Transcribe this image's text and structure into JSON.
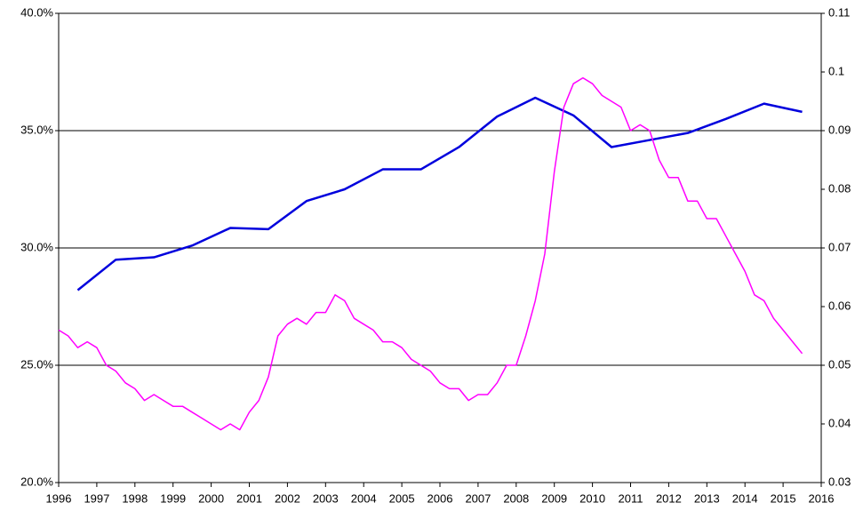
{
  "chart_data": {
    "type": "line",
    "xlim": [
      1996,
      2016
    ],
    "xticks": [
      1996,
      1997,
      1998,
      1999,
      2000,
      2001,
      2002,
      2003,
      2004,
      2005,
      2006,
      2007,
      2008,
      2009,
      2010,
      2011,
      2012,
      2013,
      2014,
      2015,
      2016
    ],
    "ylim": [
      20,
      40
    ],
    "yticks": [
      {
        "value": 20,
        "label": "20.0%"
      },
      {
        "value": 25,
        "label": "25.0%"
      },
      {
        "value": 30,
        "label": "30.0%"
      },
      {
        "value": 35,
        "label": "35.0%"
      },
      {
        "value": 40,
        "label": "40.0%"
      }
    ],
    "y2lim": [
      0.03,
      0.11
    ],
    "y2ticks": [
      0.03,
      0.04,
      0.05,
      0.06,
      0.07,
      0.08,
      0.09,
      0.1,
      0.11
    ],
    "grid": true,
    "series": [
      {
        "color": "#0000dd",
        "axis": "y",
        "x": [
          1996.5,
          1997.5,
          1998.5,
          1999.5,
          2000.5,
          2001.5,
          2002.5,
          2003.5,
          2004.5,
          2005.5,
          2006.5,
          2007.5,
          2008.5,
          2009.5,
          2010.5,
          2011.5,
          2012.5,
          2013.5,
          2014.5,
          2015.5
        ],
        "values": [
          28.2,
          29.5,
          29.6,
          30.1,
          30.85,
          30.8,
          32.0,
          32.5,
          33.35,
          33.35,
          34.3,
          35.6,
          36.4,
          35.65,
          34.3,
          34.6,
          34.9,
          35.5,
          36.15,
          35.8
        ]
      },
      {
        "color": "#ff00ff",
        "axis": "y2",
        "x": [
          1996,
          1996.25,
          1996.5,
          1996.75,
          1997,
          1997.25,
          1997.5,
          1997.75,
          1998,
          1998.25,
          1998.5,
          1998.75,
          1999,
          1999.25,
          1999.5,
          1999.75,
          2000,
          2000.25,
          2000.5,
          2000.75,
          2001,
          2001.25,
          2001.5,
          2001.75,
          2002,
          2002.25,
          2002.5,
          2002.75,
          2003,
          2003.25,
          2003.5,
          2003.75,
          2004,
          2004.25,
          2004.5,
          2004.75,
          2005,
          2005.25,
          2005.5,
          2005.75,
          2006,
          2006.25,
          2006.5,
          2006.75,
          2007,
          2007.25,
          2007.5,
          2007.75,
          2008,
          2008.25,
          2008.5,
          2008.75,
          2009,
          2009.25,
          2009.5,
          2009.75,
          2010,
          2010.25,
          2010.5,
          2010.75,
          2011,
          2011.25,
          2011.5,
          2011.75,
          2012,
          2012.25,
          2012.5,
          2012.75,
          2013,
          2013.25,
          2013.5,
          2013.75,
          2014,
          2014.25,
          2014.5,
          2014.75,
          2015,
          2015.25,
          2015.5
        ],
        "values": [
          0.056,
          0.055,
          0.053,
          0.054,
          0.053,
          0.05,
          0.049,
          0.047,
          0.046,
          0.044,
          0.045,
          0.044,
          0.043,
          0.043,
          0.042,
          0.041,
          0.04,
          0.039,
          0.04,
          0.039,
          0.042,
          0.044,
          0.048,
          0.055,
          0.057,
          0.058,
          0.057,
          0.059,
          0.059,
          0.062,
          0.061,
          0.058,
          0.057,
          0.056,
          0.054,
          0.054,
          0.053,
          0.051,
          0.05,
          0.049,
          0.047,
          0.046,
          0.046,
          0.044,
          0.045,
          0.045,
          0.047,
          0.05,
          0.05,
          0.055,
          0.061,
          0.069,
          0.083,
          0.094,
          0.098,
          0.099,
          0.098,
          0.096,
          0.095,
          0.094,
          0.09,
          0.091,
          0.09,
          0.085,
          0.082,
          0.082,
          0.078,
          0.078,
          0.075,
          0.075,
          0.072,
          0.069,
          0.066,
          0.062,
          0.061,
          0.058,
          0.056,
          0.054,
          0.052
        ]
      }
    ]
  }
}
